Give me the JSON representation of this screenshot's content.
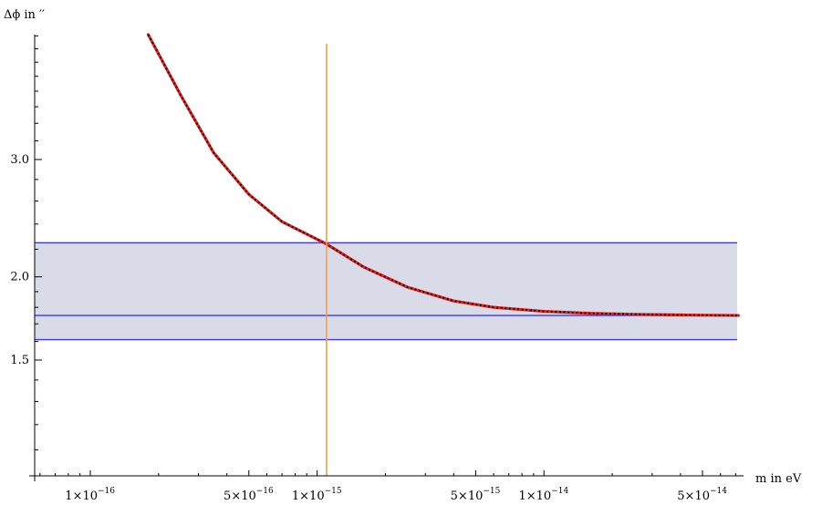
{
  "chart_data": {
    "type": "line",
    "title": "",
    "xlabel": "m in eV",
    "ylabel": "Δϕ in ′′",
    "x_scale": "log",
    "y_scale": "log",
    "xlim": [
      5e-17,
      8e-14
    ],
    "ylim": [
      1.0,
      4.8
    ],
    "x_ticks": [
      {
        "value": 1e-16,
        "label": "1×10",
        "exp": "−16"
      },
      {
        "value": 5e-16,
        "label": "5×10",
        "exp": "−16"
      },
      {
        "value": 1e-15,
        "label": "1×10",
        "exp": "−15"
      },
      {
        "value": 5e-15,
        "label": "5×10",
        "exp": "−15"
      },
      {
        "value": 1e-14,
        "label": "1×10",
        "exp": "−14"
      },
      {
        "value": 5e-14,
        "label": "5×10",
        "exp": "−14"
      }
    ],
    "y_ticks": [
      {
        "value": 1.5,
        "label": "1.5"
      },
      {
        "value": 2.0,
        "label": "2.0"
      },
      {
        "value": 3.0,
        "label": "3.0"
      }
    ],
    "band": {
      "y_min": 1.61,
      "y_max": 2.25,
      "color": "#d9dbe9",
      "edge_color": "#3a3af0"
    },
    "reference_line": {
      "y": 1.75,
      "color": "#3a3af0"
    },
    "vertical_line": {
      "x": 1.1e-15,
      "color": "#ff9a3c"
    },
    "series": [
      {
        "style": "solid red with dotted black overlay",
        "color": "#e8201e",
        "overlay_color": "#111111",
        "x": [
          1.8e-16,
          2.5e-16,
          3.5e-16,
          5e-16,
          7e-16,
          1.1e-15,
          1.6e-15,
          2.5e-15,
          4e-15,
          6e-15,
          1e-14,
          1.6e-14,
          2.5e-14,
          4e-14,
          7.2e-14
        ],
        "y": [
          4.62,
          3.75,
          3.07,
          2.66,
          2.42,
          2.24,
          2.07,
          1.93,
          1.84,
          1.8,
          1.775,
          1.763,
          1.757,
          1.753,
          1.75
        ]
      }
    ]
  }
}
